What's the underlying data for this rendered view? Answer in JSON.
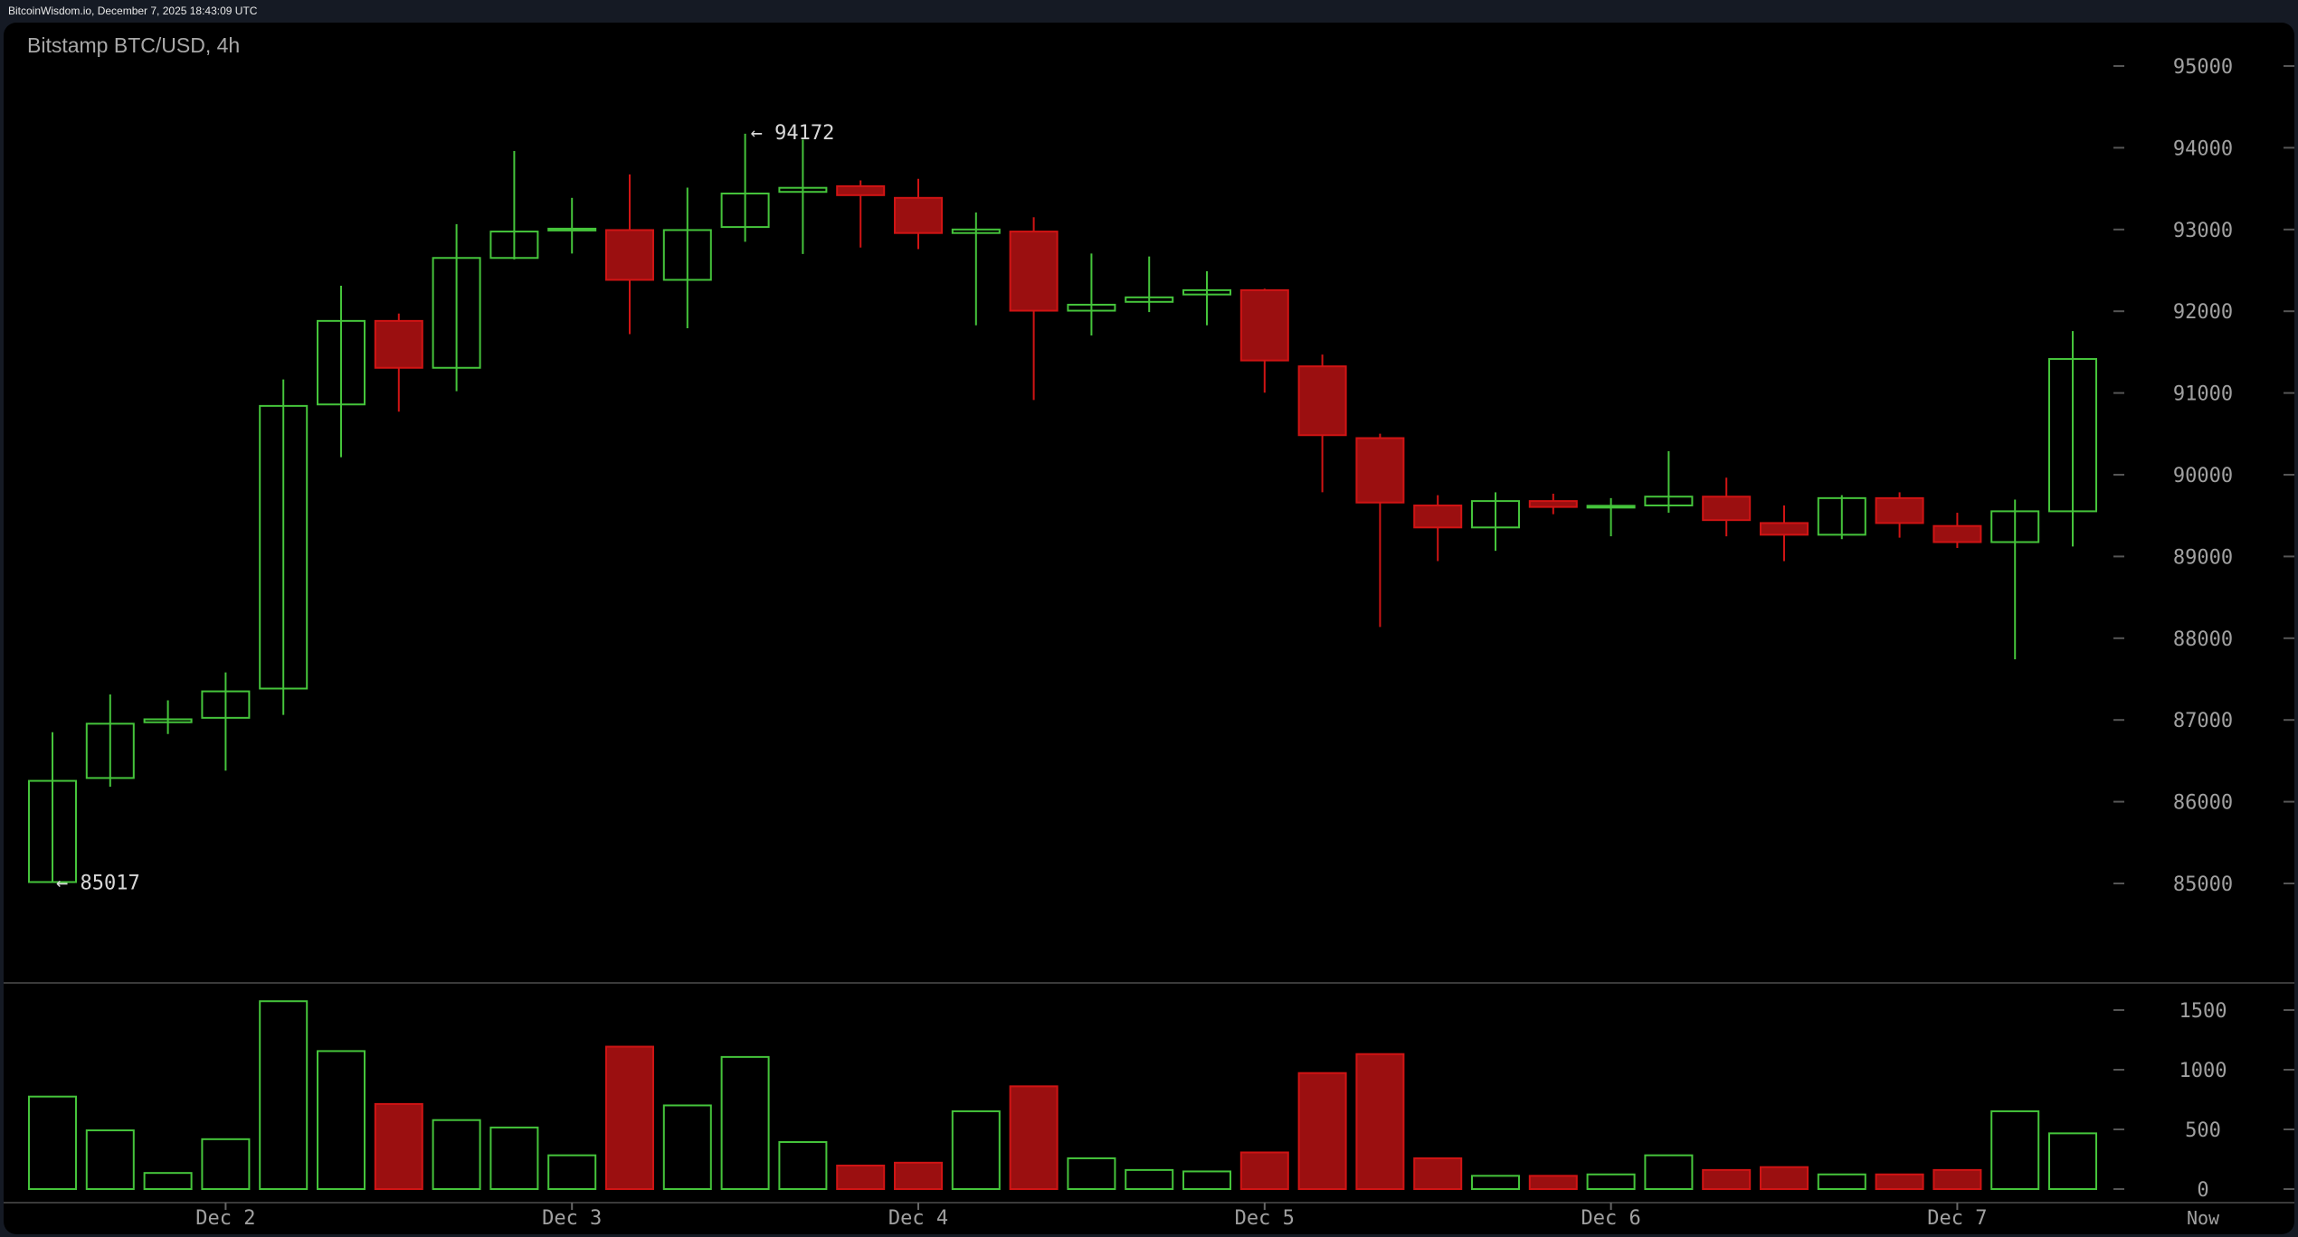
{
  "header": {
    "source_line": "BitcoinWisdom.io, December 7, 2025 18:43:09 UTC"
  },
  "colors": {
    "up": "#45c43b",
    "down": "#d01414",
    "down_fill": "#9b0f10",
    "axis_text": "#a0a0a0",
    "background": "#000000"
  },
  "chart_data": {
    "type": "candlestick",
    "title": "Bitstamp BTC/USD, 4h",
    "price_axis": {
      "ylim": [
        85000,
        95000
      ],
      "ticks": [
        "95000",
        "94000",
        "93000",
        "92000",
        "91000",
        "90000",
        "89000",
        "88000",
        "87000",
        "86000",
        "85000"
      ]
    },
    "volume_axis": {
      "ylim": [
        0,
        1500
      ],
      "ticks": [
        "1500",
        "1000",
        "500",
        "0"
      ]
    },
    "x_labels": [
      {
        "label": "Dec 2",
        "index": 3
      },
      {
        "label": "Dec 3",
        "index": 9
      },
      {
        "label": "Dec 4",
        "index": 15
      },
      {
        "label": "Dec 5",
        "index": 21
      },
      {
        "label": "Dec 6",
        "index": 27
      },
      {
        "label": "Dec 7",
        "index": 33
      }
    ],
    "now_label": "Now",
    "annotations": {
      "high": {
        "label": "← 94172",
        "value": 94172,
        "index": 12
      },
      "low": {
        "label": "← 85017",
        "value": 85017,
        "index": 0
      }
    },
    "candles": [
      {
        "o": 85017,
        "h": 86850,
        "l": 85017,
        "c": 86255,
        "v": 775
      },
      {
        "o": 86290,
        "h": 87312,
        "l": 86183,
        "c": 86954,
        "v": 492
      },
      {
        "o": 86972,
        "h": 87240,
        "l": 86828,
        "c": 87008,
        "v": 135
      },
      {
        "o": 87026,
        "h": 87581,
        "l": 86380,
        "c": 87350,
        "v": 418
      },
      {
        "o": 87384,
        "h": 91165,
        "l": 87061,
        "c": 90842,
        "v": 1574
      },
      {
        "o": 90860,
        "h": 92312,
        "l": 90215,
        "c": 91882,
        "v": 1156
      },
      {
        "o": 91882,
        "h": 91972,
        "l": 90771,
        "c": 91308,
        "v": 713
      },
      {
        "o": 91308,
        "h": 93065,
        "l": 91022,
        "c": 92652,
        "v": 578
      },
      {
        "o": 92652,
        "h": 93960,
        "l": 92634,
        "c": 92975,
        "v": 516
      },
      {
        "o": 92993,
        "h": 93387,
        "l": 92706,
        "c": 93010,
        "v": 283
      },
      {
        "o": 92993,
        "h": 93674,
        "l": 91720,
        "c": 92384,
        "v": 1193
      },
      {
        "o": 92384,
        "h": 93512,
        "l": 91792,
        "c": 92993,
        "v": 701
      },
      {
        "o": 93030,
        "h": 94172,
        "l": 92850,
        "c": 93440,
        "v": 1107
      },
      {
        "o": 93460,
        "h": 94100,
        "l": 92700,
        "c": 93510,
        "v": 394
      },
      {
        "o": 93530,
        "h": 93600,
        "l": 92780,
        "c": 93420,
        "v": 197
      },
      {
        "o": 93387,
        "h": 93620,
        "l": 92760,
        "c": 92957,
        "v": 221
      },
      {
        "o": 92957,
        "h": 93208,
        "l": 91828,
        "c": 93000,
        "v": 652
      },
      {
        "o": 92975,
        "h": 93150,
        "l": 90914,
        "c": 92007,
        "v": 861
      },
      {
        "o": 92007,
        "h": 92706,
        "l": 91703,
        "c": 92080,
        "v": 258
      },
      {
        "o": 92115,
        "h": 92670,
        "l": 91990,
        "c": 92170,
        "v": 160
      },
      {
        "o": 92205,
        "h": 92490,
        "l": 91828,
        "c": 92258,
        "v": 148
      },
      {
        "o": 92258,
        "h": 92276,
        "l": 91004,
        "c": 91398,
        "v": 307
      },
      {
        "o": 91326,
        "h": 91470,
        "l": 89785,
        "c": 90484,
        "v": 972
      },
      {
        "o": 90448,
        "h": 90502,
        "l": 88137,
        "c": 89660,
        "v": 1131
      },
      {
        "o": 89624,
        "h": 89750,
        "l": 88943,
        "c": 89355,
        "v": 258
      },
      {
        "o": 89355,
        "h": 89785,
        "l": 89069,
        "c": 89678,
        "v": 111
      },
      {
        "o": 89678,
        "h": 89768,
        "l": 89517,
        "c": 89606,
        "v": 111
      },
      {
        "o": 89606,
        "h": 89714,
        "l": 89247,
        "c": 89620,
        "v": 123
      },
      {
        "o": 89624,
        "h": 90287,
        "l": 89535,
        "c": 89732,
        "v": 283
      },
      {
        "o": 89732,
        "h": 89964,
        "l": 89247,
        "c": 89445,
        "v": 160
      },
      {
        "o": 89409,
        "h": 89624,
        "l": 88943,
        "c": 89266,
        "v": 184
      },
      {
        "o": 89266,
        "h": 89750,
        "l": 89212,
        "c": 89714,
        "v": 123
      },
      {
        "o": 89714,
        "h": 89785,
        "l": 89230,
        "c": 89409,
        "v": 123
      },
      {
        "o": 89373,
        "h": 89535,
        "l": 89104,
        "c": 89176,
        "v": 160
      },
      {
        "o": 89176,
        "h": 89696,
        "l": 87742,
        "c": 89553,
        "v": 652
      },
      {
        "o": 89553,
        "h": 91757,
        "l": 89122,
        "c": 91416,
        "v": 467
      }
    ]
  }
}
